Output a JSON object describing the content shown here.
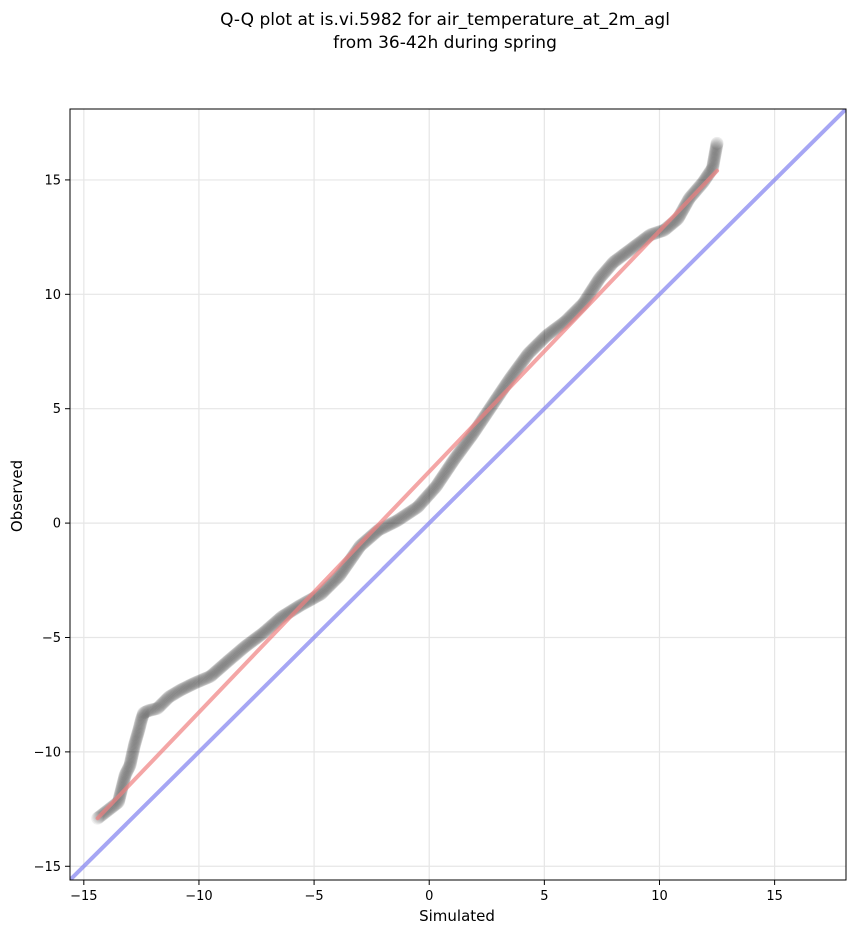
{
  "chart_data": {
    "type": "scatter",
    "title": "Q-Q plot at is.vi.5982 for air_temperature_at_2m_agl",
    "subtitle": "from 36-42h during spring",
    "xlabel": "Simulated",
    "ylabel": "Observed",
    "xlim": [
      -15.6,
      18.1
    ],
    "ylim": [
      -15.6,
      18.1
    ],
    "xticks": [
      -15,
      -10,
      -5,
      0,
      5,
      10,
      15
    ],
    "yticks": [
      -15,
      -10,
      -5,
      0,
      5,
      10,
      15
    ],
    "xtick_labels": [
      "−15",
      "−10",
      "−5",
      "0",
      "5",
      "10",
      "15"
    ],
    "ytick_labels": [
      "−15",
      "−10",
      "−5",
      "0",
      "5",
      "10",
      "15"
    ],
    "grid": true,
    "quantile_points": {
      "x": [
        -14.4,
        -13.5,
        -13.2,
        -13.0,
        -12.8,
        -12.6,
        -12.5,
        -12.4,
        -12.2,
        -11.8,
        -11.3,
        -10.8,
        -10.2,
        -9.5,
        -8.7,
        -8.0,
        -7.2,
        -6.4,
        -5.6,
        -4.7,
        -3.9,
        -3.0,
        -2.2,
        -1.4,
        -0.5,
        0.3,
        1.1,
        1.9,
        2.7,
        3.5,
        4.3,
        5.1,
        5.9,
        6.7,
        7.4,
        8.0,
        8.8,
        9.6,
        10.2,
        10.8,
        11.3,
        11.9,
        12.3,
        12.5
      ],
      "y": [
        -12.9,
        -12.2,
        -11.0,
        -10.6,
        -9.7,
        -9.0,
        -8.6,
        -8.3,
        -8.2,
        -8.1,
        -7.6,
        -7.3,
        -7.0,
        -6.7,
        -6.0,
        -5.4,
        -4.8,
        -4.1,
        -3.6,
        -3.1,
        -2.3,
        -1.0,
        -0.3,
        0.1,
        0.7,
        1.6,
        2.8,
        3.9,
        5.1,
        6.3,
        7.4,
        8.2,
        8.8,
        9.6,
        10.7,
        11.4,
        12.0,
        12.6,
        12.8,
        13.3,
        14.2,
        14.9,
        15.5,
        16.6
      ]
    },
    "series": [
      {
        "role": "fit-line",
        "color": "#f08080",
        "x": [
          -14.4,
          12.5
        ],
        "y": [
          -12.9,
          15.4
        ]
      },
      {
        "role": "one-to-one-line",
        "color": "#8080f0",
        "x": [
          -15.6,
          18.1
        ],
        "y": [
          -15.6,
          18.1
        ]
      }
    ],
    "point_color": "#000000"
  }
}
